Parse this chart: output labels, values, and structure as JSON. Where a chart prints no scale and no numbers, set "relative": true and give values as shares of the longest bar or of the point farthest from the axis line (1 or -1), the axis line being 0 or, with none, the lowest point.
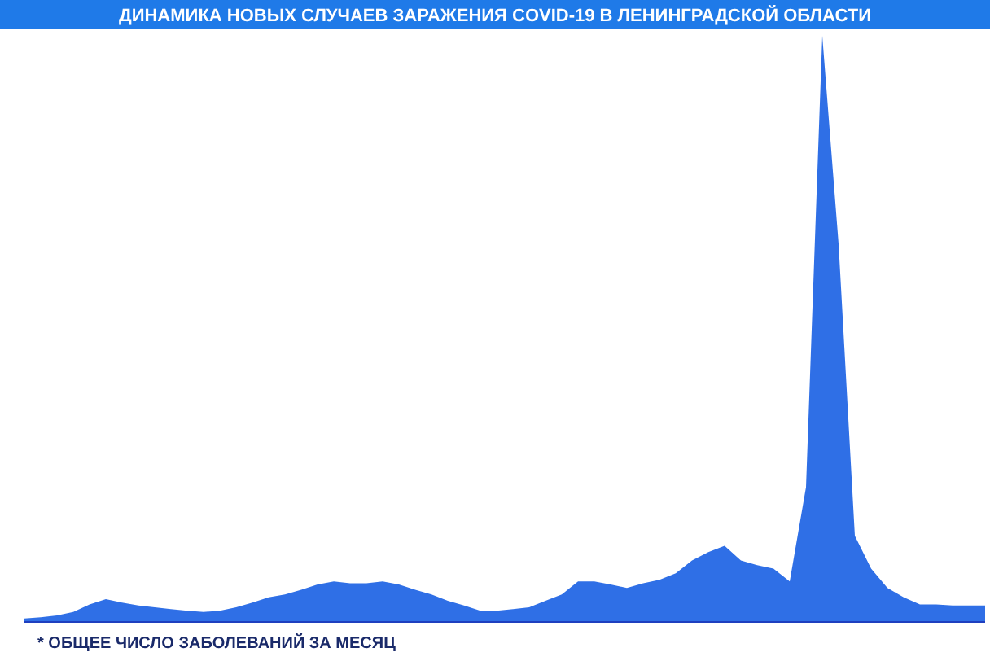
{
  "chart_data": {
    "type": "area",
    "title": "ДИНАМИКА НОВЫХ СЛУЧАЕВ ЗАРАЖЕНИЯ COVID-19 В ЛЕНИНГРАДСКОЙ ОБЛАСТИ",
    "annotations": [
      "* ОБЩЕЕ ЧИСЛО ЗАБОЛЕВАНИЙ ЗА МЕСЯЦ"
    ],
    "relative": true,
    "categories": [
      null,
      null,
      null,
      null,
      null,
      null,
      null,
      null,
      null,
      null,
      null,
      null,
      null,
      null,
      null,
      null,
      null,
      null,
      null,
      null,
      null,
      null,
      null,
      null,
      null,
      null,
      null,
      null,
      null,
      null,
      null,
      null,
      null,
      null,
      null,
      null,
      null,
      null,
      null,
      null,
      null,
      null,
      null,
      null,
      null,
      null,
      null,
      null,
      null,
      null,
      null,
      null,
      null,
      null,
      null,
      null,
      null,
      null,
      null,
      null
    ],
    "series": [
      {
        "color": "#2f6fe6",
        "values": [
          0.006,
          0.008,
          0.011,
          0.017,
          0.03,
          0.039,
          0.033,
          0.028,
          0.025,
          0.022,
          0.019,
          0.017,
          0.019,
          0.025,
          0.033,
          0.042,
          0.047,
          0.055,
          0.064,
          0.069,
          0.066,
          0.066,
          0.069,
          0.064,
          0.055,
          0.047,
          0.036,
          0.028,
          0.019,
          0.019,
          0.022,
          0.025,
          0.036,
          0.047,
          0.069,
          0.069,
          0.064,
          0.058,
          0.066,
          0.072,
          0.083,
          0.105,
          0.119,
          0.13,
          0.105,
          0.097,
          0.091,
          0.069,
          0.23,
          1,
          0.645,
          0.147,
          0.091,
          0.058,
          0.042,
          0.03,
          0.03,
          0.028,
          0.028,
          0.028
        ]
      }
    ]
  }
}
